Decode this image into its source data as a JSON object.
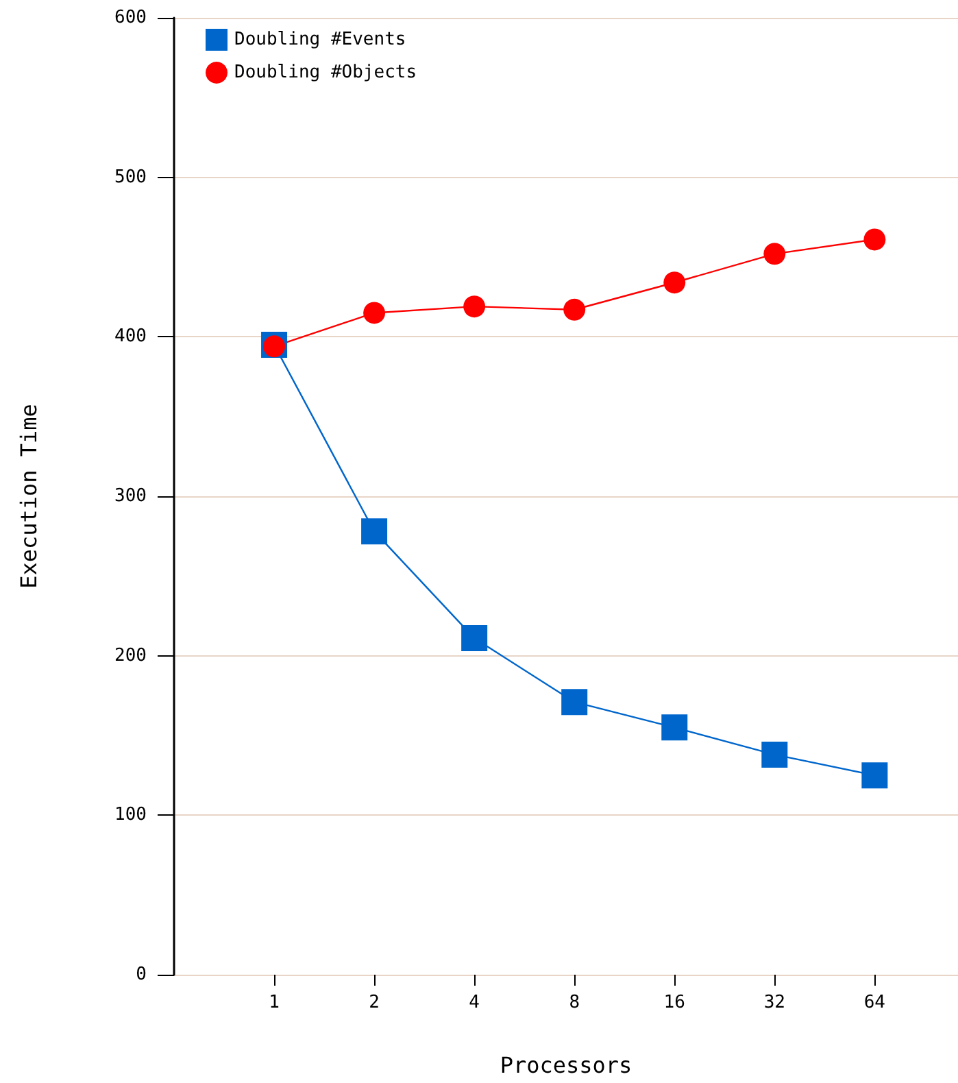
{
  "chart_data": {
    "type": "line",
    "xlabel": "Processors",
    "ylabel": "Execution Time",
    "x": [
      1,
      2,
      4,
      8,
      16,
      32,
      64
    ],
    "log": "x",
    "xlim": [
      0.5,
      114
    ],
    "xticks": [
      1,
      2,
      4,
      8,
      16,
      32,
      64
    ],
    "ylim": [
      0,
      600
    ],
    "yticks": [
      0,
      100,
      200,
      300,
      400,
      500,
      600
    ],
    "grid": "y",
    "legend": "top left",
    "series": [
      {
        "name": "Doubling #Events",
        "color": "#0066cc",
        "marker": "square",
        "values": [
          395,
          278,
          211,
          171,
          155,
          138,
          125
        ]
      },
      {
        "name": "Doubling #Objects",
        "color": "#ff0000",
        "marker": "circle",
        "values": [
          394,
          415,
          419,
          417,
          434,
          452,
          461
        ]
      }
    ]
  }
}
